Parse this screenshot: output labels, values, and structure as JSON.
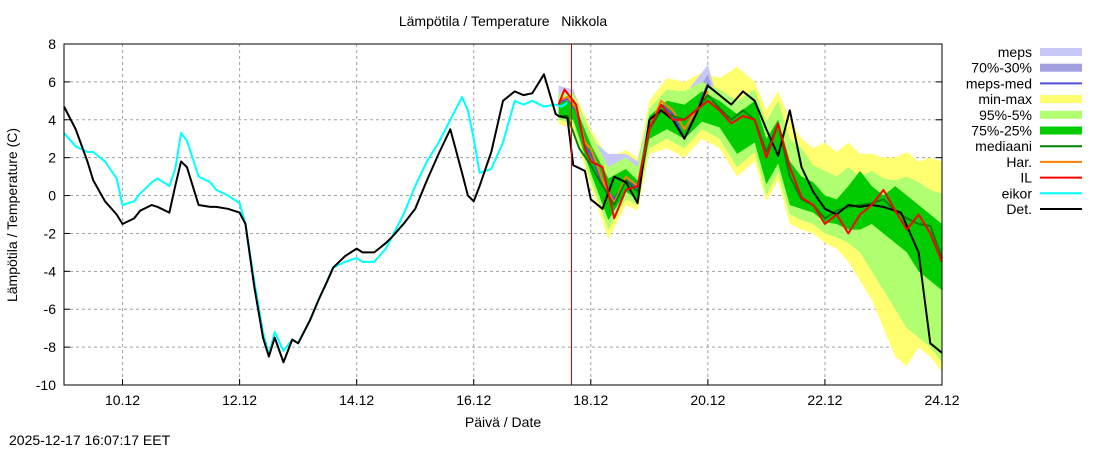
{
  "chart_data": {
    "type": "line",
    "title": "Lämpötila / Temperature   Nikkola",
    "xlabel": "Päivä / Date",
    "ylabel": "Lämpötila / Temperature (C)",
    "timestamp": "2025-12-17 16:07:17 EET",
    "x_unit": "days since 9.12 00:00",
    "xlim": [
      0.0,
      15.0
    ],
    "ylim": [
      -10,
      8
    ],
    "yticks": [
      -10,
      -8,
      -6,
      -4,
      -2,
      0,
      2,
      4,
      6,
      8
    ],
    "xticks": [
      {
        "x": 1,
        "label": "10.12"
      },
      {
        "x": 3,
        "label": "12.12"
      },
      {
        "x": 5,
        "label": "14.12"
      },
      {
        "x": 7,
        "label": "16.12"
      },
      {
        "x": 9,
        "label": "18.12"
      },
      {
        "x": 11,
        "label": "20.12"
      },
      {
        "x": 13,
        "label": "22.12"
      },
      {
        "x": 15,
        "label": "24.12"
      }
    ],
    "grid": true,
    "legend_position": "right",
    "now_x": 8.67,
    "colors": {
      "meps": "#c8c8f8",
      "p70_30": "#a0a0e0",
      "meps_med": "#5050d8",
      "minmax": "#ffff70",
      "p95_5": "#b0ff70",
      "p75_25": "#00cc00",
      "mediaani": "#008000",
      "har": "#ff8000",
      "il": "#ff0000",
      "eikor": "#00ffff",
      "det": "#000000",
      "now": "#e00000"
    },
    "legend": [
      {
        "key": "meps",
        "label": "meps",
        "style": "band"
      },
      {
        "key": "p70_30",
        "label": "70%-30%",
        "style": "band"
      },
      {
        "key": "meps_med",
        "label": "meps-med",
        "style": "line"
      },
      {
        "key": "minmax",
        "label": "min-max",
        "style": "band"
      },
      {
        "key": "p95_5",
        "label": "95%-5%",
        "style": "band"
      },
      {
        "key": "p75_25",
        "label": "75%-25%",
        "style": "band"
      },
      {
        "key": "mediaani",
        "label": "mediaani",
        "style": "line"
      },
      {
        "key": "har",
        "label": "Har.",
        "style": "line"
      },
      {
        "key": "il",
        "label": "IL",
        "style": "line"
      },
      {
        "key": "eikor",
        "label": "eikor",
        "style": "line"
      },
      {
        "key": "det",
        "label": "Det.",
        "style": "line"
      }
    ],
    "series": [
      {
        "name": "eikor",
        "x": [
          0.0,
          0.2,
          0.4,
          0.5,
          0.7,
          0.9,
          1.0,
          1.2,
          1.3,
          1.5,
          1.6,
          1.8,
          1.9,
          2.0,
          2.1,
          2.3,
          2.5,
          2.6,
          2.8,
          3.0,
          3.1,
          3.25,
          3.4,
          3.5,
          3.6,
          3.75,
          3.9,
          4.0,
          4.2,
          4.35,
          4.5,
          4.6,
          4.8,
          5.0,
          5.1,
          5.3,
          5.5,
          5.6,
          5.8,
          6.0,
          6.2,
          6.4,
          6.6,
          6.8,
          6.9,
          7.0,
          7.1,
          7.3,
          7.5,
          7.7,
          7.85,
          8.0,
          8.2,
          8.4,
          8.5,
          8.6
        ],
        "y": [
          3.3,
          2.6,
          2.3,
          2.3,
          1.8,
          0.9,
          -0.5,
          -0.3,
          0.1,
          0.7,
          0.9,
          0.5,
          1.4,
          3.3,
          2.9,
          1.0,
          0.7,
          0.3,
          0.0,
          -0.4,
          -1.5,
          -4.5,
          -7.2,
          -8.4,
          -7.2,
          -8.2,
          -7.6,
          -7.8,
          -6.6,
          -5.5,
          -4.5,
          -3.8,
          -3.5,
          -3.3,
          -3.5,
          -3.5,
          -2.8,
          -2.2,
          -1.0,
          0.5,
          1.8,
          2.8,
          4.0,
          5.2,
          4.5,
          3.0,
          1.2,
          1.4,
          2.8,
          5.0,
          4.8,
          5.0,
          4.7,
          4.8,
          4.7,
          4.9
        ]
      },
      {
        "name": "det",
        "x": [
          0.0,
          0.2,
          0.4,
          0.5,
          0.7,
          0.9,
          1.0,
          1.2,
          1.3,
          1.5,
          1.6,
          1.8,
          1.9,
          2.0,
          2.1,
          2.3,
          2.5,
          2.6,
          2.8,
          3.0,
          3.1,
          3.25,
          3.4,
          3.5,
          3.6,
          3.75,
          3.9,
          4.0,
          4.2,
          4.35,
          4.5,
          4.6,
          4.8,
          5.0,
          5.1,
          5.3,
          5.5,
          5.6,
          5.8,
          6.0,
          6.2,
          6.4,
          6.6,
          6.8,
          6.9,
          7.0,
          7.1,
          7.3,
          7.5,
          7.7,
          7.85,
          8.0,
          8.2,
          8.4,
          8.45,
          8.6,
          8.7,
          8.9,
          9.0,
          9.2,
          9.4,
          9.6,
          9.8,
          10.0,
          10.2,
          10.4,
          10.6,
          10.8,
          11.0,
          11.2,
          11.4,
          11.6,
          11.8,
          12.0,
          12.2,
          12.4,
          12.6,
          12.8,
          13.0,
          13.2,
          13.4,
          13.6,
          13.8,
          14.0,
          14.3,
          14.6,
          14.8,
          15.0
        ],
        "y": [
          4.7,
          3.5,
          1.8,
          0.8,
          -0.3,
          -1.0,
          -1.5,
          -1.2,
          -0.8,
          -0.5,
          -0.6,
          -0.9,
          0.5,
          1.8,
          1.5,
          -0.5,
          -0.6,
          -0.6,
          -0.7,
          -0.9,
          -1.5,
          -4.8,
          -7.5,
          -8.5,
          -7.5,
          -8.8,
          -7.6,
          -7.8,
          -6.6,
          -5.5,
          -4.5,
          -3.8,
          -3.2,
          -2.8,
          -3.0,
          -3.0,
          -2.5,
          -2.2,
          -1.5,
          -0.7,
          0.8,
          2.2,
          3.5,
          1.2,
          0.0,
          -0.3,
          0.5,
          2.3,
          5.0,
          5.5,
          5.3,
          5.4,
          6.4,
          4.3,
          4.2,
          4.1,
          1.6,
          1.3,
          -0.2,
          -0.7,
          1.0,
          0.7,
          -0.4,
          4.0,
          4.5,
          4.0,
          3.0,
          4.3,
          5.8,
          5.3,
          4.8,
          5.5,
          5.0,
          3.5,
          2.1,
          4.5,
          1.5,
          0.2,
          -0.7,
          -1.0,
          -0.5,
          -0.6,
          -0.5,
          -0.6,
          -0.9,
          -3.0,
          -7.8,
          -8.3
        ]
      },
      {
        "name": "il",
        "x": [
          8.45,
          8.55,
          8.65,
          8.75,
          8.9,
          9.0,
          9.2,
          9.4,
          9.6,
          9.8,
          10.0,
          10.2,
          10.4,
          10.6,
          10.8,
          11.0,
          11.2,
          11.4,
          11.6,
          11.8,
          12.0,
          12.2,
          12.4,
          12.6,
          12.8,
          13.0,
          13.2,
          13.4,
          13.6,
          13.8,
          14.0,
          14.2,
          14.4,
          14.6,
          14.8,
          15.0
        ],
        "y": [
          4.8,
          5.6,
          5.2,
          4.8,
          2.5,
          1.8,
          1.5,
          -1.2,
          0.3,
          0.5,
          3.5,
          4.8,
          4.0,
          4.0,
          4.5,
          5.0,
          4.5,
          3.8,
          4.2,
          4.0,
          2.0,
          3.8,
          1.5,
          -0.1,
          -0.5,
          -1.5,
          -1.0,
          -2.0,
          -1.0,
          -0.5,
          0.3,
          -0.8,
          -1.8,
          -1.0,
          -2.0,
          -3.5
        ]
      },
      {
        "name": "har",
        "x": [
          8.45,
          8.6,
          8.75,
          8.9,
          9.0,
          9.2,
          9.4,
          9.6,
          9.8,
          10.0,
          10.2,
          10.4,
          10.6,
          10.8,
          11.0
        ],
        "y": [
          5.0,
          5.2,
          4.6,
          2.8,
          2.5,
          0.8,
          -0.4,
          1.0,
          0.5,
          3.5,
          5.0,
          4.5,
          3.5,
          4.5,
          5.5
        ]
      },
      {
        "name": "meps_med",
        "x": [
          8.45,
          8.6,
          8.75,
          8.9,
          9.0,
          9.2,
          9.4,
          9.6,
          9.8,
          10.0,
          10.2,
          10.4,
          10.6,
          10.8,
          11.0
        ],
        "y": [
          4.9,
          5.1,
          4.5,
          2.6,
          2.2,
          0.6,
          -0.2,
          0.8,
          0.4,
          3.6,
          4.8,
          4.3,
          3.0,
          4.4,
          5.9
        ]
      },
      {
        "name": "mediaani",
        "x": [
          8.45,
          8.6,
          8.8,
          9.0,
          9.2,
          9.4,
          9.6,
          9.8,
          10.0,
          10.2,
          10.4,
          10.6,
          10.8,
          11.0,
          11.2,
          11.4,
          11.6,
          11.8,
          12.0,
          12.2,
          12.4,
          12.6,
          12.8,
          13.0,
          13.2,
          13.4,
          13.6,
          13.8,
          14.0,
          14.2,
          14.4,
          14.6,
          14.8,
          15.0
        ],
        "y": [
          4.2,
          4.2,
          2.5,
          1.6,
          0.5,
          -0.5,
          0.8,
          0.2,
          3.5,
          4.5,
          4.2,
          4.0,
          4.5,
          5.3,
          4.6,
          4.0,
          4.5,
          4.0,
          2.3,
          3.8,
          1.0,
          -0.2,
          -0.5,
          -1.2,
          -0.8,
          -0.6,
          -0.5,
          -0.4,
          -0.2,
          -0.8,
          -1.2,
          -1.5,
          -1.6,
          -3.3
        ]
      },
      {
        "name": "meps",
        "x": [
          8.45,
          8.7,
          9.0,
          9.3,
          9.6,
          9.8,
          10.0,
          10.3,
          10.6,
          10.9,
          11.0,
          11.1
        ],
        "lo": [
          4.3,
          3.8,
          1.5,
          -0.5,
          0.1,
          0.2,
          3.3,
          4.0,
          3.0,
          3.9,
          5.2,
          4.5
        ],
        "hi": [
          5.8,
          5.6,
          3.0,
          2.2,
          2.2,
          1.8,
          4.5,
          5.5,
          5.3,
          6.5,
          6.9,
          5.8
        ]
      },
      {
        "name": "p70_30",
        "x": [
          8.45,
          8.7,
          9.0,
          9.3,
          9.6,
          9.8,
          10.0,
          10.3,
          10.6,
          10.9,
          11.0,
          11.1
        ],
        "lo": [
          4.5,
          4.2,
          2.0,
          0.0,
          0.4,
          0.3,
          3.5,
          4.3,
          3.4,
          4.3,
          5.5,
          4.8
        ],
        "hi": [
          5.4,
          5.2,
          2.6,
          1.4,
          1.6,
          1.3,
          4.2,
          5.2,
          4.8,
          5.9,
          6.4,
          5.4
        ]
      },
      {
        "name": "minmax",
        "x": [
          8.45,
          8.7,
          9.0,
          9.3,
          9.6,
          9.8,
          10.0,
          10.3,
          10.6,
          10.9,
          11.2,
          11.5,
          11.8,
          12.0,
          12.2,
          12.4,
          12.6,
          12.8,
          13.0,
          13.2,
          13.4,
          13.6,
          13.8,
          14.0,
          14.2,
          14.4,
          14.6,
          14.8,
          15.0
        ],
        "lo": [
          3.8,
          3.5,
          0.5,
          -2.3,
          -0.5,
          -0.8,
          2.2,
          2.5,
          2.0,
          3.0,
          2.5,
          1.0,
          1.8,
          -0.3,
          0.8,
          -1.5,
          -1.8,
          -2.0,
          -2.5,
          -2.8,
          -3.5,
          -4.5,
          -5.5,
          -7.0,
          -8.5,
          -9.0,
          -8.0,
          -8.5,
          -9.3
        ]
      },
      {
        "name": "p95_5",
        "x": [
          8.45,
          8.7,
          9.0,
          9.3,
          9.6,
          9.8,
          10.0,
          10.3,
          10.6,
          10.9,
          11.2,
          11.5,
          11.8,
          12.0,
          12.2,
          12.4,
          12.6,
          12.8,
          13.0,
          13.2,
          13.4,
          13.6,
          13.8,
          14.0,
          14.2,
          14.4,
          14.6,
          14.8,
          15.0
        ],
        "lo": [
          4.0,
          3.8,
          0.8,
          -1.8,
          -0.2,
          -0.5,
          2.5,
          3.0,
          2.5,
          3.5,
          3.0,
          1.5,
          2.3,
          0.0,
          1.2,
          -1.0,
          -1.3,
          -1.5,
          -2.0,
          -2.2,
          -2.5,
          -3.0,
          -4.0,
          -5.0,
          -6.0,
          -7.0,
          -7.5,
          -8.0,
          -8.8
        ],
        "hi": [
          5.4,
          5.4,
          3.3,
          1.5,
          2.0,
          1.5,
          4.6,
          5.6,
          5.5,
          6.0,
          5.6,
          5.0,
          5.6,
          3.9,
          5.0,
          3.0,
          2.5,
          1.6,
          1.3,
          1.0,
          1.5,
          1.0,
          1.3,
          0.9,
          0.8,
          1.0,
          0.7,
          0.3,
          0.1
        ]
      },
      {
        "name": "p75_25",
        "x": [
          8.45,
          8.7,
          9.0,
          9.3,
          9.6,
          9.8,
          10.0,
          10.3,
          10.6,
          10.9,
          11.2,
          11.5,
          11.8,
          12.0,
          12.2,
          12.4,
          12.6,
          12.8,
          13.0,
          13.2,
          13.4,
          13.6,
          13.8,
          14.0,
          14.2,
          14.4,
          14.6,
          14.8,
          15.0
        ],
        "lo": [
          4.1,
          4.0,
          1.2,
          -1.3,
          0.2,
          -0.2,
          3.0,
          3.5,
          3.0,
          3.9,
          3.6,
          2.2,
          2.8,
          0.6,
          1.7,
          -0.5,
          -0.7,
          -0.9,
          -1.4,
          -1.5,
          -1.8,
          -1.8,
          -1.5,
          -2.0,
          -2.5,
          -3.0,
          -4.0,
          -4.5,
          -5.0
        ],
        "hi": [
          5.0,
          5.0,
          2.7,
          0.9,
          1.4,
          0.8,
          4.2,
          5.0,
          4.8,
          5.5,
          5.0,
          4.3,
          5.0,
          3.0,
          4.0,
          1.8,
          1.0,
          0.7,
          0.0,
          -0.2,
          0.5,
          1.3,
          0.5,
          0.0,
          0.5,
          0.0,
          -0.5,
          -1.0,
          -1.5
        ]
      }
    ]
  }
}
